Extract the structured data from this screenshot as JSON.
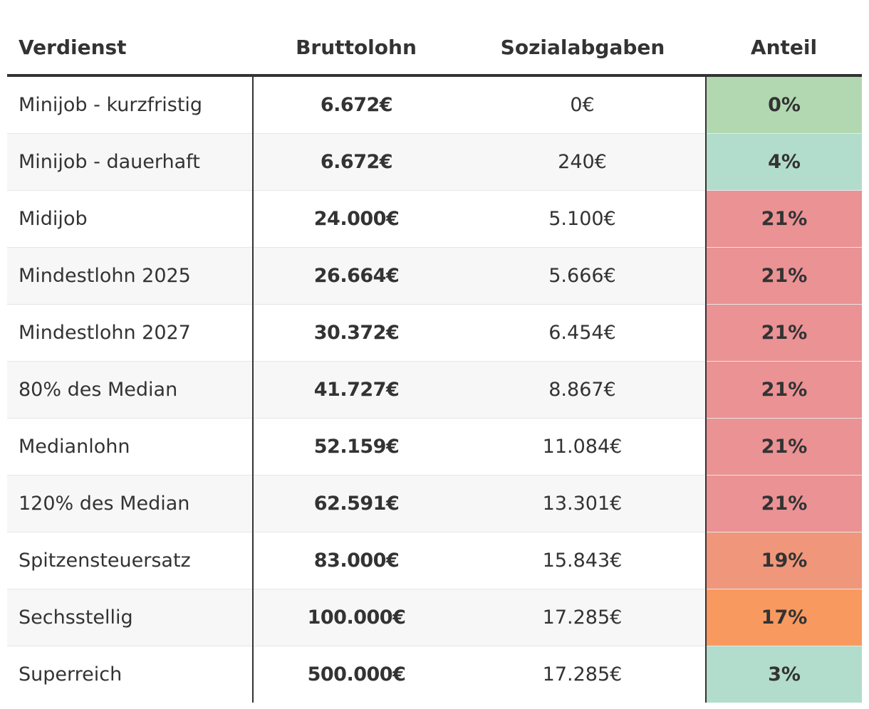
{
  "headers": {
    "verdienst": "Verdienst",
    "bruttolohn": "Bruttolohn",
    "sozialabgaben": "Sozialabgaben",
    "anteil": "Anteil"
  },
  "rows": [
    {
      "label": "Minijob - kurzfristig",
      "brutto": "6.672€",
      "sozial": "0€",
      "anteil": "0%",
      "color": "#b2d8b2"
    },
    {
      "label": "Minijob - dauerhaft",
      "brutto": "6.672€",
      "sozial": "240€",
      "anteil": "4%",
      "color": "#b2dccb"
    },
    {
      "label": "Midijob",
      "brutto": "24.000€",
      "sozial": "5.100€",
      "anteil": "21%",
      "color": "#ea9294"
    },
    {
      "label": "Mindestlohn 2025",
      "brutto": "26.664€",
      "sozial": "5.666€",
      "anteil": "21%",
      "color": "#ea9294"
    },
    {
      "label": "Mindestlohn 2027",
      "brutto": "30.372€",
      "sozial": "6.454€",
      "anteil": "21%",
      "color": "#ea9294"
    },
    {
      "label": "80% des Median",
      "brutto": "41.727€",
      "sozial": "8.867€",
      "anteil": "21%",
      "color": "#ea9294"
    },
    {
      "label": "Medianlohn",
      "brutto": "52.159€",
      "sozial": "11.084€",
      "anteil": "21%",
      "color": "#ea9294"
    },
    {
      "label": "120% des Median",
      "brutto": "62.591€",
      "sozial": "13.301€",
      "anteil": "21%",
      "color": "#ea9294"
    },
    {
      "label": "Spitzensteuersatz",
      "brutto": "83.000€",
      "sozial": "15.843€",
      "anteil": "19%",
      "color": "#f0967a"
    },
    {
      "label": "Sechsstellig",
      "brutto": "100.000€",
      "sozial": "17.285€",
      "anteil": "17%",
      "color": "#f89960"
    },
    {
      "label": "Superreich",
      "brutto": "500.000€",
      "sozial": "17.285€",
      "anteil": "3%",
      "color": "#b2dccb"
    }
  ]
}
